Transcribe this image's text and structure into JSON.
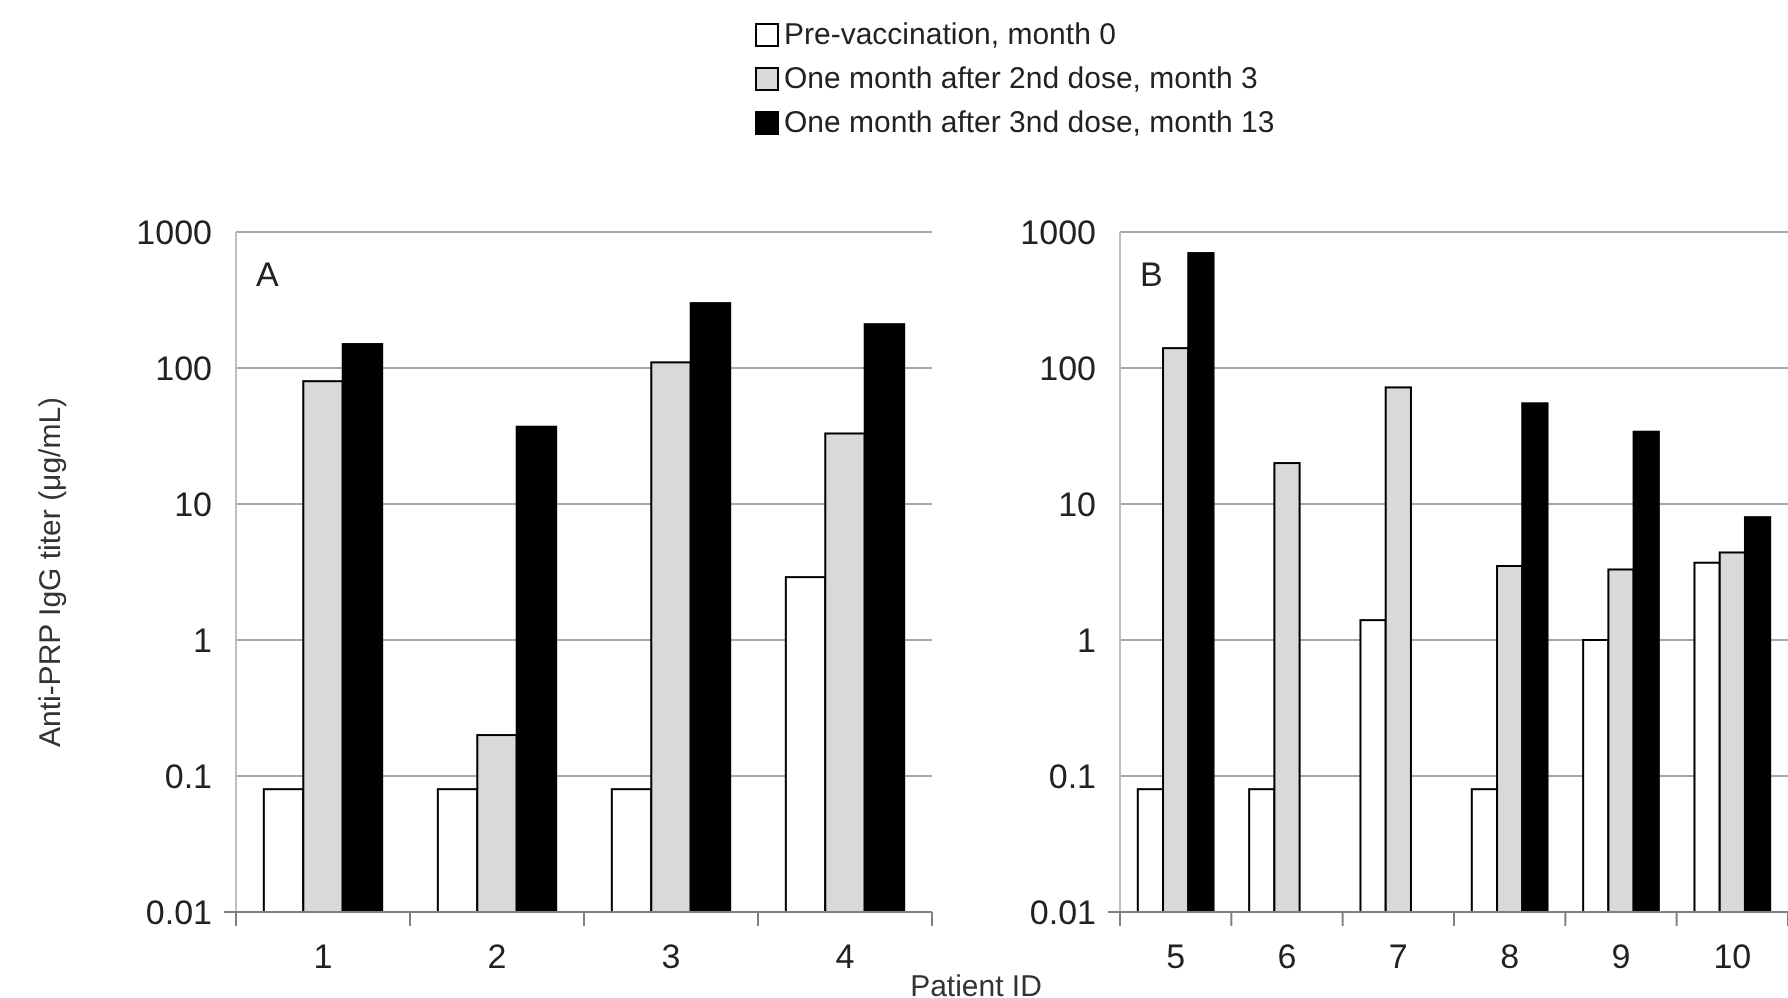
{
  "chart_data": [
    {
      "type": "bar",
      "title": "A",
      "ylabel": "Anti-PRP IgG titer (μg/mL)",
      "categories": [
        "1",
        "2",
        "3",
        "4"
      ],
      "log": true,
      "grid": "y",
      "legend": "top",
      "ylim": [
        0.01,
        1000
      ],
      "yticks": [
        0.01,
        0.1,
        1,
        10,
        100,
        1000
      ],
      "series": [
        {
          "name": "Pre-vaccination, month 0",
          "color": "#ffffff",
          "values": [
            0.08,
            0.08,
            0.08,
            2.9
          ]
        },
        {
          "name": "One month after 2nd dose, month 3",
          "color": "#d9d9d9",
          "values": [
            80,
            0.2,
            110,
            33
          ]
        },
        {
          "name": "One month after 3nd dose, month 13",
          "color": "#000000",
          "values": [
            150,
            37,
            300,
            210
          ]
        }
      ]
    },
    {
      "type": "bar",
      "title": "B",
      "xlabel": "Patient ID",
      "categories": [
        "5",
        "6",
        "7",
        "8",
        "9",
        "10"
      ],
      "log": true,
      "grid": "y",
      "ylim": [
        0.01,
        1000
      ],
      "yticks": [
        0.01,
        0.1,
        1,
        10,
        100,
        1000
      ],
      "series": [
        {
          "color": "#ffffff",
          "values": [
            0.08,
            0.08,
            1.4,
            0.08,
            1.0,
            3.7
          ]
        },
        {
          "color": "#d9d9d9",
          "values": [
            140,
            20,
            72,
            3.5,
            3.3,
            4.4
          ]
        },
        {
          "color": "#000000",
          "values": [
            700,
            null,
            null,
            55,
            34,
            8
          ]
        }
      ]
    }
  ]
}
